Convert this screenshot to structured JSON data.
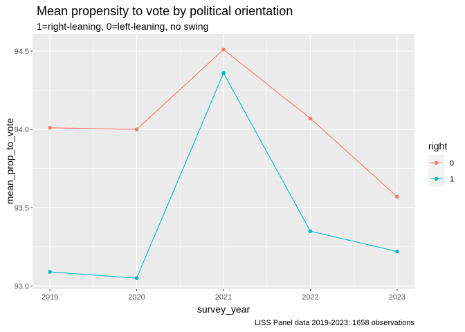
{
  "chart_data": {
    "type": "line",
    "title": "Mean propensity to vote by political orientation",
    "subtitle": "1=right-leaning, 0=left-leaning, no swing",
    "xlabel": "survey_year",
    "ylabel": "mean_prop_to_vote",
    "caption": "LISS Panel data 2019-2023: 1658 observations",
    "x": [
      2019,
      2020,
      2021,
      2022,
      2023
    ],
    "xticks": [
      "2019",
      "2020",
      "2021",
      "2022",
      "2023"
    ],
    "yticks": [
      "93.0",
      "93.5",
      "94.0",
      "94.5"
    ],
    "xlim": [
      2018.8,
      2023.2
    ],
    "ylim": [
      92.98,
      94.61
    ],
    "grid": true,
    "legend": {
      "title": "right",
      "position": "right"
    },
    "series": [
      {
        "name": "0",
        "color": "#F8766D",
        "values": [
          94.01,
          94.0,
          94.51,
          94.07,
          93.57
        ]
      },
      {
        "name": "1",
        "color": "#00BFC4",
        "values": [
          93.09,
          93.05,
          94.36,
          93.35,
          93.22
        ]
      }
    ]
  }
}
